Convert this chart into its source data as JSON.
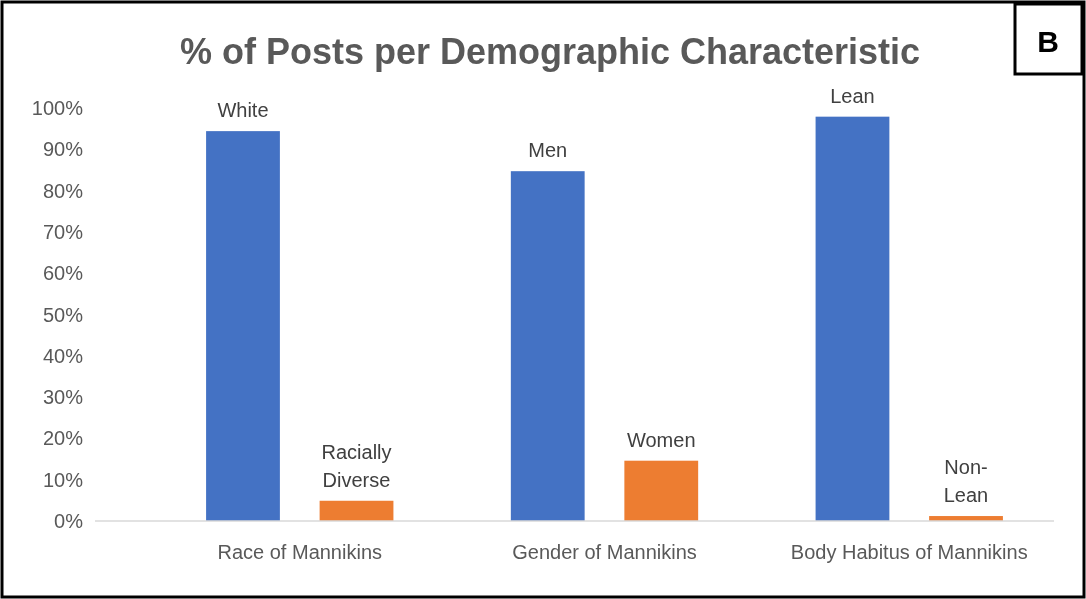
{
  "chart_data": {
    "type": "bar",
    "title": "% of Posts per Demographic Characteristic",
    "categories": [
      "Race of Mannikins",
      "Gender of Mannikins",
      "Body Habitus of Mannikins"
    ],
    "series": [
      {
        "color": "#4472c4",
        "values": [
          94.4,
          84.7,
          97.9
        ],
        "value_labels": [
          "White",
          "Men",
          "Lean"
        ]
      },
      {
        "color": "#ed7d31",
        "values": [
          4.9,
          14.6,
          1.2
        ],
        "value_labels": [
          "Racially Diverse",
          "Women",
          "Non-Lean"
        ]
      }
    ],
    "ylim": [
      0,
      100
    ],
    "yticks": [
      {
        "value": 0,
        "label": "0%"
      },
      {
        "value": 10,
        "label": "10%"
      },
      {
        "value": 20,
        "label": "20%"
      },
      {
        "value": 30,
        "label": "30%"
      },
      {
        "value": 40,
        "label": "40%"
      },
      {
        "value": 50,
        "label": "50%"
      },
      {
        "value": 60,
        "label": "60%"
      },
      {
        "value": 70,
        "label": "70%"
      },
      {
        "value": 80,
        "label": "80%"
      },
      {
        "value": 90,
        "label": "90%"
      },
      {
        "value": 100,
        "label": "100%"
      }
    ],
    "grid": false,
    "annotations": [
      "B"
    ]
  }
}
